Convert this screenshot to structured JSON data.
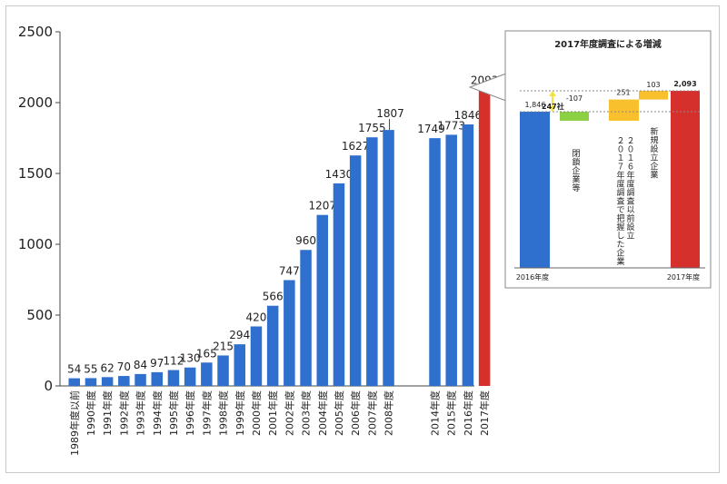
{
  "colors": {
    "bar_blue": "#2f6fce",
    "bar_red": "#d6302c",
    "closure_green": "#8bd143",
    "new_yellow": "#f7c02c",
    "grid": "#bdbdbd",
    "annotation_yellow": "#f2e33a"
  },
  "chart_data": [
    {
      "type": "bar",
      "categories": [
        "1989年度以前",
        "1990年度",
        "1991年度",
        "1992年度",
        "1993年度",
        "1994年度",
        "1995年度",
        "1996年度",
        "1997年度",
        "1998年度",
        "1999年度",
        "2000年度",
        "2001年度",
        "2002年度",
        "2003年度",
        "2004年度",
        "2005年度",
        "2006年度",
        "2007年度",
        "2008年度",
        "2014年度",
        "2015年度",
        "2016年度",
        "2017年度"
      ],
      "values": [
        54,
        55,
        62,
        70,
        84,
        97,
        112,
        130,
        165,
        215,
        294,
        420,
        566,
        747,
        960,
        1207,
        1430,
        1627,
        1755,
        1807,
        1749,
        1773,
        1846,
        2093
      ],
      "ylim": [
        0,
        2500
      ],
      "yticks": [
        0,
        500,
        1000,
        1500,
        2000,
        2500
      ],
      "ytick_labels": [
        "0",
        "500",
        "1000",
        "1500",
        "2000",
        "2500"
      ],
      "highlight_last": true,
      "grid": false
    },
    {
      "type": "bar",
      "subtype": "waterfall",
      "title": "2017年度調査による増減",
      "bars": [
        {
          "name": "2016年度",
          "label": "1,846",
          "value": 1846,
          "kind": "total"
        },
        {
          "name": "閉鎖企業等",
          "label": "-107",
          "value": -107,
          "kind": "decrease"
        },
        {
          "name": "２０１６年度調査以前設立\n２０１７年度調査で把握した企業",
          "label": "251",
          "value": 251,
          "kind": "increase"
        },
        {
          "name": "新規設立企業",
          "label": "103",
          "value": 103,
          "kind": "increase"
        },
        {
          "name": "2017年度",
          "label": "2,093",
          "value": 2093,
          "kind": "total"
        }
      ],
      "annotation": "247社",
      "x_labels": [
        "2016年度",
        "2017年度"
      ]
    }
  ]
}
